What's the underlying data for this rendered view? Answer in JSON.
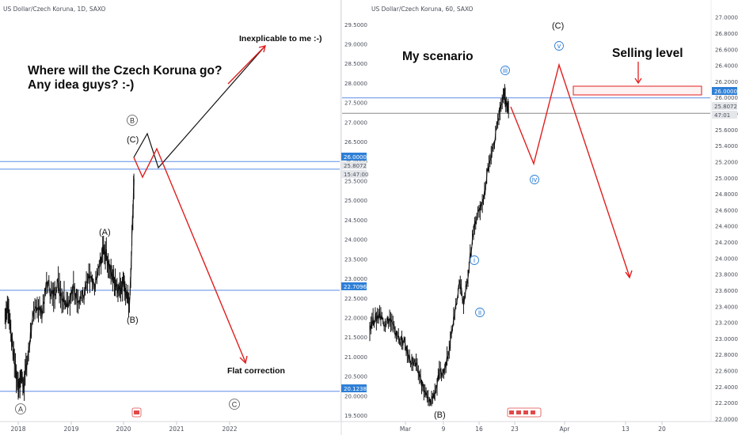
{
  "chart_data": [
    {
      "type": "line",
      "title": "US Dollar/Czech Koruna, 1D, SAXO",
      "x_ticks": [
        "2018",
        "2019",
        "2020",
        "2021",
        "2022"
      ],
      "y_ticks": [
        "19.5000",
        "20.0000",
        "20.5000",
        "21.0000",
        "21.5000",
        "22.0000",
        "22.5000",
        "23.0000",
        "23.5000",
        "24.0000",
        "24.5000",
        "25.0000",
        "25.5000",
        "26.0000",
        "26.5000",
        "27.0000",
        "27.5000",
        "28.0000",
        "28.5000",
        "29.0000",
        "29.5000"
      ],
      "ylim": [
        19.35,
        29.85
      ],
      "series": [
        {
          "values": [
            [
              2017.75,
              22.05
            ],
            [
              2017.8,
              22.35
            ],
            [
              2017.86,
              21.65
            ],
            [
              2017.92,
              20.95
            ],
            [
              2018.0,
              20.25
            ],
            [
              2018.05,
              20.55
            ],
            [
              2018.1,
              20.3
            ],
            [
              2018.17,
              20.85
            ],
            [
              2018.25,
              21.75
            ],
            [
              2018.35,
              22.35
            ],
            [
              2018.45,
              22.15
            ],
            [
              2018.55,
              22.95
            ],
            [
              2018.65,
              22.55
            ],
            [
              2018.75,
              22.9
            ],
            [
              2018.85,
              22.5
            ],
            [
              2018.95,
              22.4
            ],
            [
              2019.05,
              22.75
            ],
            [
              2019.15,
              22.5
            ],
            [
              2019.25,
              22.6
            ],
            [
              2019.35,
              23.05
            ],
            [
              2019.45,
              22.75
            ],
            [
              2019.55,
              23.35
            ],
            [
              2019.62,
              23.8
            ],
            [
              2019.7,
              23.5
            ],
            [
              2019.78,
              23.05
            ],
            [
              2019.85,
              22.9
            ],
            [
              2019.93,
              22.7
            ],
            [
              2020.0,
              22.95
            ],
            [
              2020.05,
              22.55
            ],
            [
              2020.12,
              22.45
            ],
            [
              2020.17,
              24.4
            ],
            [
              2020.2,
              25.55
            ]
          ]
        }
      ],
      "annotations": [
        {
          "type": "hline",
          "value": 26.0,
          "label": "26.0000"
        },
        {
          "type": "hline",
          "value": 25.8072,
          "label": "25.8072"
        },
        {
          "type": "hline",
          "value": 22.7096,
          "label": "22.7096"
        },
        {
          "type": "hline",
          "value": 20.1238,
          "label": "20.1238"
        }
      ],
      "price_labels": {
        "p1": "26.0000",
        "p2": "25.8072",
        "p3": "15:47:00",
        "p4": "22.7096",
        "p5": "20.1238"
      },
      "wave_labels": {
        "A_big": "A",
        "B_big": "B",
        "C_big": "C",
        "A_small": "(A)",
        "B_small": "(B)",
        "C_small": "(C)"
      },
      "texts": {
        "heading_line1": "Where will the Czech Koruna go?",
        "heading_line2": "Any idea guys? :-)",
        "inexplicable": "Inexplicable to me :-)",
        "flat": "Flat correction"
      },
      "grid": false
    },
    {
      "type": "line",
      "title": "US Dollar/Czech Koruna, 60, SAXO",
      "x_ticks": [
        "Mar",
        "9",
        "16",
        "23",
        "Apr",
        "13",
        "20"
      ],
      "y_ticks": [
        "22.0000",
        "22.2000",
        "22.4000",
        "22.6000",
        "22.8000",
        "23.0000",
        "23.2000",
        "23.4000",
        "23.6000",
        "23.8000",
        "24.0000",
        "24.2000",
        "24.4000",
        "24.6000",
        "24.8000",
        "25.0000",
        "25.2000",
        "25.4000",
        "25.6000",
        "25.8000",
        "26.0000",
        "26.2000",
        "26.4000",
        "26.6000",
        "26.8000",
        "27.0000"
      ],
      "ylim": [
        21.97,
        27.08
      ],
      "series": [
        {
          "values": [
            [
              0,
              23.15
            ],
            [
              1,
              23.25
            ],
            [
              2,
              23.3
            ],
            [
              3,
              23.2
            ],
            [
              4,
              23.25
            ],
            [
              5,
              23.1
            ],
            [
              6,
              23.0
            ],
            [
              7,
              22.95
            ],
            [
              8,
              22.75
            ],
            [
              9,
              22.7
            ],
            [
              10,
              22.55
            ],
            [
              11,
              22.35
            ],
            [
              12,
              22.2
            ],
            [
              13,
              22.3
            ],
            [
              14,
              22.55
            ],
            [
              15,
              22.6
            ],
            [
              16,
              22.9
            ],
            [
              17,
              23.3
            ],
            [
              18,
              23.7
            ],
            [
              19,
              23.45
            ],
            [
              20,
              23.9
            ],
            [
              21,
              24.4
            ],
            [
              22,
              24.6
            ],
            [
              23,
              24.75
            ],
            [
              24,
              25.2
            ],
            [
              25,
              25.4
            ],
            [
              26,
              25.8
            ],
            [
              27,
              26.05
            ],
            [
              27.5,
              25.92
            ],
            [
              28,
              25.85
            ]
          ]
        }
      ],
      "annotations": [
        {
          "type": "hline",
          "value": 26.0,
          "label": "26.0000"
        },
        {
          "type": "hline",
          "value": 25.8072,
          "label": "25.8072"
        },
        {
          "type": "rect",
          "from": 25.93,
          "to": 26.06,
          "label": "Selling level"
        }
      ],
      "price_labels": {
        "p1": "26.0000",
        "p2": "25.8072",
        "p3": "47:01"
      },
      "wave_labels": {
        "B": "(B)",
        "C": "(C)",
        "i": "i",
        "ii": "ii",
        "iii": "iii",
        "iv": "iv",
        "v": "v"
      },
      "texts": {
        "scenario": "My scenario",
        "selling": "Selling level"
      },
      "grid": false
    }
  ],
  "colors": {
    "up": "#111111",
    "projection": "#e01e1e",
    "hline": "#5b8ee6",
    "gray_line": "#888888",
    "circle": "#2e7fd6",
    "axis_text": "#4a4f5a"
  }
}
